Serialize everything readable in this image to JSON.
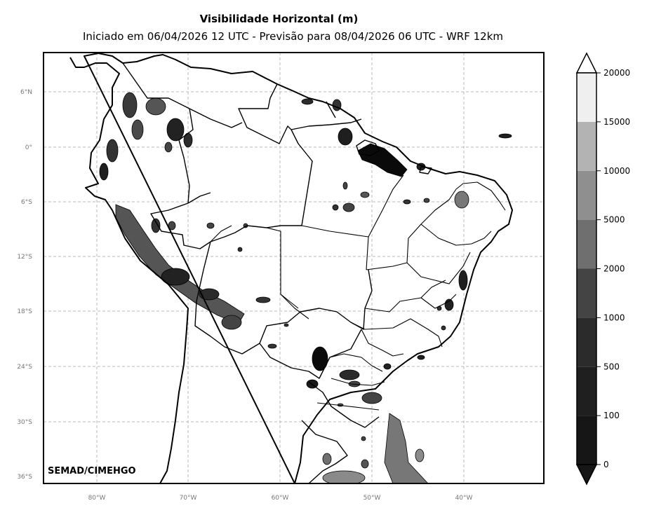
{
  "title": "Visibilidade Horizontal (m)",
  "subtitle": "Iniciado em 06/04/2026 12 UTC - Previsão para 08/04/2026 06 UTC - WRF 12km",
  "credit": "SEMAD/CIMEHGO",
  "lat_ticks": [
    "6°N",
    "0°",
    "6°S",
    "12°S",
    "18°S",
    "24°S",
    "30°S",
    "36°S"
  ],
  "lon_ticks": [
    "80°W",
    "70°W",
    "60°W",
    "50°W",
    "40°W"
  ],
  "colorbar": {
    "ticks": [
      "0",
      "100",
      "500",
      "1000",
      "2000",
      "5000",
      "10000",
      "15000",
      "20000"
    ],
    "colors": [
      "#161616",
      "#1f1f1f",
      "#2b2b2b",
      "#444444",
      "#6f6f6f",
      "#8f8f8f",
      "#b3b3b3",
      "#efefef"
    ],
    "under_color": "#161616",
    "over_color": "#ffffff"
  }
}
